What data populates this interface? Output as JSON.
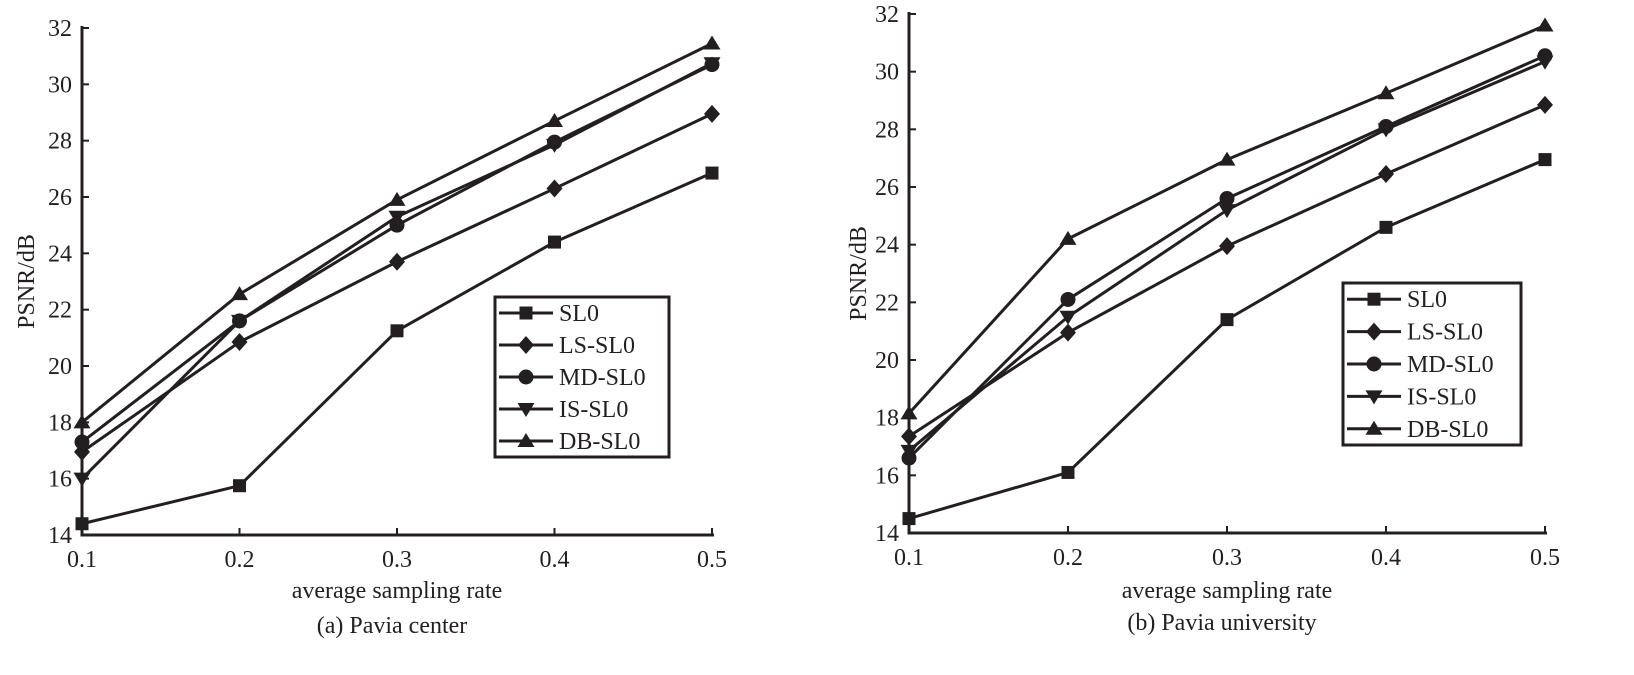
{
  "chart_data": [
    {
      "type": "line",
      "caption": "(a) Pavia center",
      "xlabel": "average sampling rate",
      "ylabel": "PSNR/dB",
      "x": [
        0.1,
        0.2,
        0.3,
        0.4,
        0.5
      ],
      "x_ticks": [
        "0.1",
        "0.2",
        "0.3",
        "0.4",
        "0.5"
      ],
      "y_ticks": [
        "14",
        "16",
        "18",
        "20",
        "22",
        "24",
        "26",
        "28",
        "30",
        "32"
      ],
      "xlim": [
        0.1,
        0.5
      ],
      "ylim": [
        14,
        32
      ],
      "grid": false,
      "legend_position": "center-right",
      "series": [
        {
          "name": "SL0",
          "marker": "square",
          "values": [
            14.4,
            15.75,
            21.25,
            24.4,
            26.85
          ]
        },
        {
          "name": "LS-SL0",
          "marker": "diamond",
          "values": [
            16.95,
            20.85,
            23.7,
            26.3,
            28.95
          ]
        },
        {
          "name": "MD-SL0",
          "marker": "circle",
          "values": [
            17.3,
            21.6,
            25.0,
            27.95,
            30.7
          ]
        },
        {
          "name": "IS-SL0",
          "marker": "triangle-down",
          "values": [
            16.0,
            21.6,
            25.3,
            27.85,
            30.75
          ]
        },
        {
          "name": "DB-SL0",
          "marker": "triangle-up",
          "values": [
            18.0,
            22.55,
            25.9,
            28.7,
            31.45
          ]
        }
      ]
    },
    {
      "type": "line",
      "caption": "(b) Pavia university",
      "xlabel": "average sampling rate",
      "ylabel": "PSNR/dB",
      "x": [
        0.1,
        0.2,
        0.3,
        0.4,
        0.5
      ],
      "x_ticks": [
        "0.1",
        "0.2",
        "0.3",
        "0.4",
        "0.5"
      ],
      "y_ticks": [
        "14",
        "16",
        "18",
        "20",
        "22",
        "24",
        "26",
        "28",
        "30",
        "32"
      ],
      "xlim": [
        0.1,
        0.5
      ],
      "ylim": [
        14,
        32
      ],
      "grid": false,
      "legend_position": "center-right",
      "series": [
        {
          "name": "SL0",
          "marker": "square",
          "values": [
            14.5,
            16.1,
            21.4,
            24.6,
            26.95
          ]
        },
        {
          "name": "LS-SL0",
          "marker": "diamond",
          "values": [
            17.35,
            20.95,
            23.95,
            26.45,
            28.85
          ]
        },
        {
          "name": "MD-SL0",
          "marker": "circle",
          "values": [
            16.6,
            22.1,
            25.6,
            28.1,
            30.55
          ]
        },
        {
          "name": "IS-SL0",
          "marker": "triangle-down",
          "values": [
            16.85,
            21.5,
            25.2,
            28.0,
            30.35
          ]
        },
        {
          "name": "DB-SL0",
          "marker": "triangle-up",
          "values": [
            18.15,
            24.2,
            26.95,
            29.25,
            31.6
          ]
        }
      ]
    }
  ],
  "colors": {
    "ink": "#231f20",
    "background": "#ffffff"
  }
}
